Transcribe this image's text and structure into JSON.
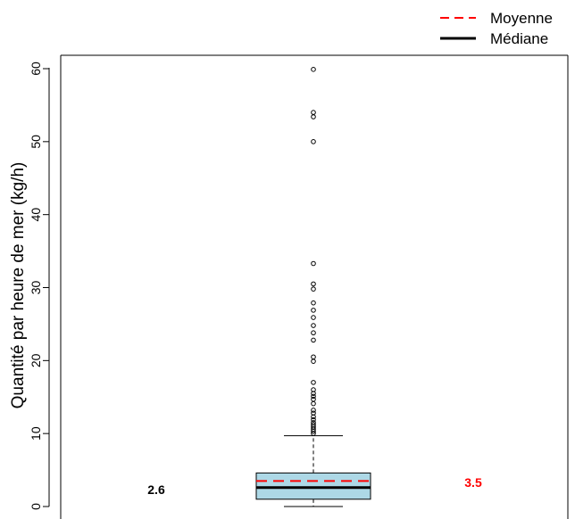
{
  "chart_data": {
    "type": "boxplot",
    "ylabel": "Quantité par heure de mer (kg/h)",
    "ylim": [
      0,
      60
    ],
    "yticks": [
      "0",
      "10",
      "20",
      "30",
      "40",
      "50",
      "60"
    ],
    "box": {
      "min": 0,
      "q1": 1.0,
      "median": 2.6,
      "mean": 3.5,
      "q3": 4.6,
      "whisker_high": 9.7,
      "fill_color": "#add8e6"
    },
    "median_label": "2.6",
    "mean_label": "3.5",
    "median_color": "#000000",
    "mean_color": "#ff0000",
    "outliers": [
      10.0,
      10.3,
      10.6,
      10.9,
      11.2,
      11.5,
      11.9,
      12.3,
      12.8,
      13.2,
      14.1,
      14.7,
      15.1,
      15.5,
      16.0,
      17.0,
      19.9,
      20.5,
      22.8,
      23.8,
      24.8,
      25.9,
      26.9,
      27.9,
      29.8,
      30.5,
      33.3,
      50.0,
      53.4,
      54.0,
      59.9
    ],
    "legend": {
      "position": "top-right",
      "entries": [
        {
          "label": "Moyenne",
          "style": "dashed",
          "color": "#ff0000"
        },
        {
          "label": "Médiane",
          "style": "solid",
          "color": "#000000"
        }
      ]
    }
  }
}
